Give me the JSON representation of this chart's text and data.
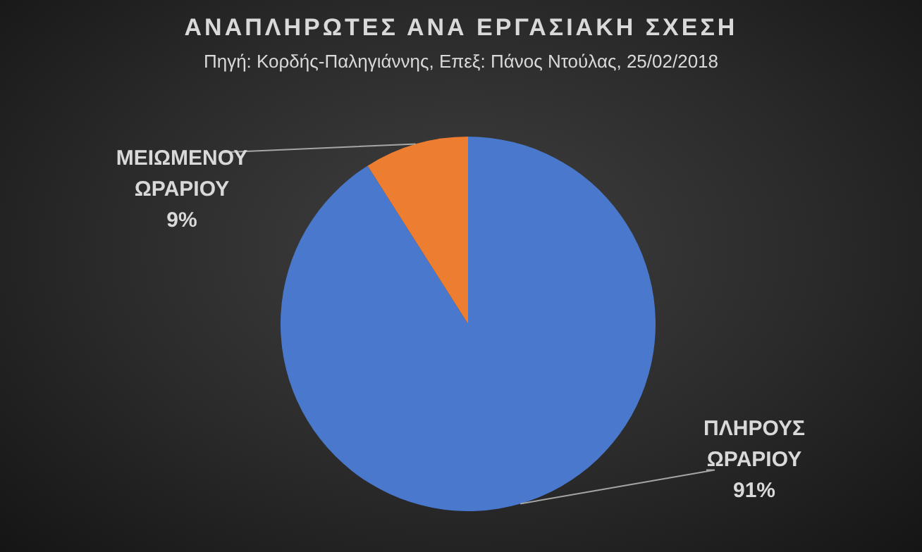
{
  "chart_data": {
    "type": "pie",
    "title": "ΑΝΑΠΛΗΡΩΤΕΣ  ΑΝΑ ΕΡΓΑΣΙΑΚΗ  ΣΧΕΣΗ",
    "subtitle": "Πηγή: Κορδής-Παληγιάννης, Επεξ: Πάνος Ντούλας, 25/02/2018",
    "categories": [
      "ΠΛΗΡΟΥΣ ΩΡΑΡΙΟΥ",
      "ΜΕΙΩΜΕΝΟΥ ΩΡΑΡΙΟΥ"
    ],
    "values": [
      91,
      9
    ],
    "colors": [
      "#4a78cc",
      "#ed7d31"
    ],
    "value_labels": [
      "91%",
      "9%"
    ],
    "legend": false
  }
}
